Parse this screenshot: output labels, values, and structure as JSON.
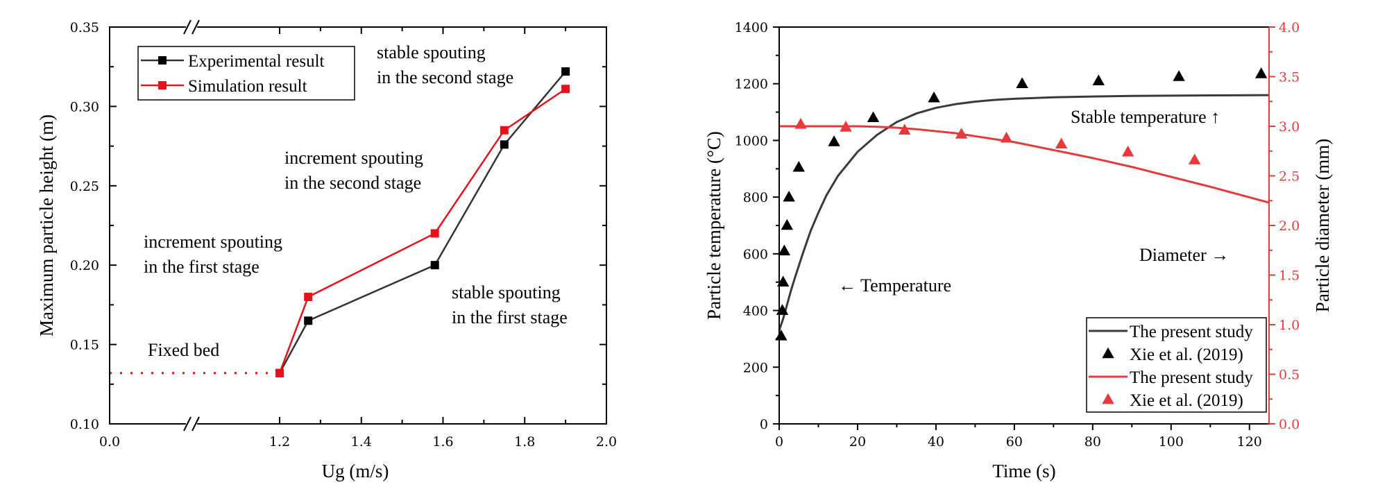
{
  "chart_data": [
    {
      "type": "line",
      "xlabel": "Ug (m/s)",
      "ylabel": "Maximum particle height (m)",
      "xlim": [
        0.0,
        2.0
      ],
      "ylim": [
        0.1,
        0.35
      ],
      "axis_break": "x between 0.0 and 1.2",
      "x_ticks": [
        "0.0",
        "1.2",
        "1.4",
        "1.6",
        "1.8",
        "2.0"
      ],
      "y_ticks": [
        "0.10",
        "0.15",
        "0.20",
        "0.25",
        "0.30",
        "0.35"
      ],
      "grid": false,
      "legend_position": "top-left",
      "series": [
        {
          "name": "Experimental result",
          "color": "#000000",
          "marker": "square",
          "points": [
            [
              1.2,
              0.132
            ],
            [
              1.27,
              0.165
            ],
            [
              1.58,
              0.2
            ],
            [
              1.75,
              0.276
            ],
            [
              1.9,
              0.322
            ]
          ]
        },
        {
          "name": "Simulation result",
          "color": "#e8111a",
          "marker": "square",
          "points": [
            [
              1.2,
              0.132
            ],
            [
              1.27,
              0.18
            ],
            [
              1.58,
              0.22
            ],
            [
              1.75,
              0.285
            ],
            [
              1.9,
              0.311
            ]
          ]
        }
      ],
      "dotted_line": {
        "color": "#e8111a",
        "y": 0.132,
        "x_from": 0.0,
        "x_to": 1.2
      },
      "annotations": [
        {
          "lines": [
            "stable spouting",
            "in the second stage"
          ]
        },
        {
          "lines": [
            "increment spouting",
            "in the second stage"
          ]
        },
        {
          "lines": [
            "increment spouting",
            "in the first stage"
          ]
        },
        {
          "lines": [
            "stable spouting",
            "in the first stage"
          ]
        },
        {
          "lines": [
            "Fixed bed"
          ]
        }
      ]
    },
    {
      "type": "line",
      "xlabel": "Time (s)",
      "ylabel": "Particle temperature (°C)",
      "y2label": "Particle diameter (mm)",
      "xlim": [
        0,
        125
      ],
      "ylim": [
        0,
        1400
      ],
      "y2lim": [
        0.0,
        4.0
      ],
      "x_ticks": [
        "0",
        "20",
        "40",
        "60",
        "80",
        "100",
        "120"
      ],
      "y_ticks": [
        "0",
        "200",
        "400",
        "600",
        "800",
        "1000",
        "1200",
        "1400"
      ],
      "y2_ticks": [
        "0.0",
        "0.5",
        "1.0",
        "1.5",
        "2.0",
        "2.5",
        "3.0",
        "3.5",
        "4.0"
      ],
      "grid": false,
      "legend_position": "bottom-right",
      "series": [
        {
          "name": "The present study",
          "axis": "left",
          "color": "#3a3a3a",
          "style": "line",
          "points": [
            [
              0,
              330
            ],
            [
              1,
              370
            ],
            [
              2,
              420
            ],
            [
              3,
              470
            ],
            [
              4,
              515
            ],
            [
              6,
              600
            ],
            [
              8,
              680
            ],
            [
              10,
              745
            ],
            [
              12,
              805
            ],
            [
              15,
              875
            ],
            [
              20,
              960
            ],
            [
              25,
              1020
            ],
            [
              30,
              1065
            ],
            [
              35,
              1095
            ],
            [
              40,
              1115
            ],
            [
              45,
              1128
            ],
            [
              50,
              1137
            ],
            [
              55,
              1143
            ],
            [
              60,
              1147
            ],
            [
              70,
              1152
            ],
            [
              80,
              1155
            ],
            [
              90,
              1157
            ],
            [
              100,
              1158
            ],
            [
              110,
              1159
            ],
            [
              125,
              1160
            ]
          ]
        },
        {
          "name": "Xie et al. (2019)",
          "axis": "left",
          "color": "#000000",
          "style": "triangle",
          "points": [
            [
              0.5,
              310
            ],
            [
              0.8,
              400
            ],
            [
              1.0,
              500
            ],
            [
              1.3,
              610
            ],
            [
              2.0,
              700
            ],
            [
              2.5,
              800
            ],
            [
              5,
              905
            ],
            [
              14,
              995
            ],
            [
              24,
              1080
            ],
            [
              39.5,
              1150
            ],
            [
              62,
              1200
            ],
            [
              81.5,
              1210
            ],
            [
              102,
              1225
            ],
            [
              123,
              1235
            ]
          ]
        },
        {
          "name": "The present study",
          "axis": "right",
          "color": "#e8383b",
          "style": "line",
          "points": [
            [
              0,
              3.0
            ],
            [
              10,
              3.0
            ],
            [
              20,
              3.0
            ],
            [
              25,
              2.995
            ],
            [
              30,
              2.985
            ],
            [
              35,
              2.97
            ],
            [
              40,
              2.95
            ],
            [
              45,
              2.93
            ],
            [
              50,
              2.9
            ],
            [
              55,
              2.87
            ],
            [
              60,
              2.84
            ],
            [
              70,
              2.76
            ],
            [
              80,
              2.68
            ],
            [
              90,
              2.59
            ],
            [
              100,
              2.49
            ],
            [
              110,
              2.39
            ],
            [
              125,
              2.23
            ]
          ]
        },
        {
          "name": "Xie et al.  (2019)",
          "axis": "right",
          "color": "#e8383b",
          "style": "triangle",
          "points": [
            [
              5.5,
              3.02
            ],
            [
              17,
              2.99
            ],
            [
              32,
              2.96
            ],
            [
              46.5,
              2.92
            ],
            [
              58,
              2.88
            ],
            [
              72,
              2.82
            ],
            [
              89,
              2.74
            ],
            [
              106,
              2.66
            ]
          ]
        }
      ],
      "annotations": [
        {
          "text": "Stable temperature ↑"
        },
        {
          "text": "Diameter →"
        },
        {
          "text": "← Temperature"
        }
      ]
    }
  ]
}
